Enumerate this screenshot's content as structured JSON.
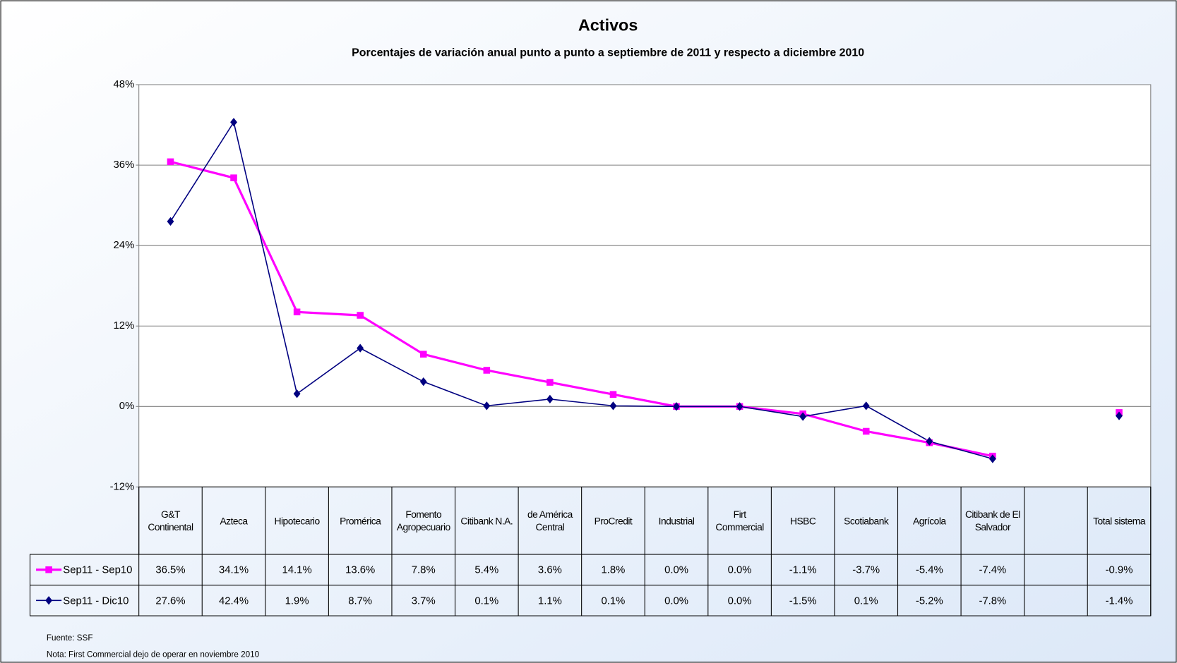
{
  "chart_data": {
    "type": "line",
    "title": "Activos",
    "subtitle": "Porcentajes de variación anual punto a punto a septiembre de 2011 y respecto a diciembre  2010",
    "categories": [
      "G&T Continental",
      "Azteca",
      "Hipotecario",
      "Promérica",
      "Fomento Agropecuario",
      "Citibank N.A.",
      "de América Central",
      "ProCredit",
      "Industrial",
      "Firt Commercial",
      "HSBC",
      "Scotiabank",
      "Agrícola",
      "Citibank de El Salvador",
      null,
      "Total sistema"
    ],
    "series": [
      {
        "name": "Sep11 - Sep10",
        "color": "#ff00ff",
        "marker": "square",
        "values": [
          36.5,
          34.1,
          14.1,
          13.6,
          7.8,
          5.4,
          3.6,
          1.8,
          0.0,
          0.0,
          -1.1,
          -3.7,
          -5.4,
          -7.4,
          null,
          -0.9
        ],
        "value_labels": [
          "36.5%",
          "34.1%",
          "14.1%",
          "13.6%",
          "7.8%",
          "5.4%",
          "3.6%",
          "1.8%",
          "0.0%",
          "0.0%",
          "-1.1%",
          "-3.7%",
          "-5.4%",
          "-7.4%",
          null,
          "-0.9%"
        ]
      },
      {
        "name": "Sep11 - Dic10",
        "color": "#000080",
        "marker": "diamond",
        "values": [
          27.6,
          42.4,
          1.9,
          8.7,
          3.7,
          0.1,
          1.1,
          0.1,
          0.0,
          0.0,
          -1.5,
          0.1,
          -5.2,
          -7.8,
          null,
          -1.4
        ],
        "value_labels": [
          "27.6%",
          "42.4%",
          "1.9%",
          "8.7%",
          "3.7%",
          "0.1%",
          "1.1%",
          "0.1%",
          "0.0%",
          "0.0%",
          "-1.5%",
          "0.1%",
          "-5.2%",
          "-7.8%",
          null,
          "-1.4%"
        ]
      }
    ],
    "ylim": [
      -12,
      48
    ],
    "yticks": [
      {
        "value": -12,
        "label": "-12%"
      },
      {
        "value": 0,
        "label": "0%"
      },
      {
        "value": 12,
        "label": "12%"
      },
      {
        "value": 24,
        "label": "24%"
      },
      {
        "value": 36,
        "label": "36%"
      },
      {
        "value": 48,
        "label": "48%"
      }
    ],
    "grid": true,
    "source": "Fuente: SSF",
    "note": "Nota: First Commercial dejo de operar en noviembre 2010"
  }
}
